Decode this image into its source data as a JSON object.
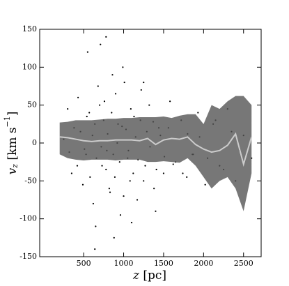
{
  "chart_data": {
    "type": "scatter",
    "xlabel": {
      "symbol": "z",
      "unit": "[pc]"
    },
    "ylabel": {
      "symbol": "v",
      "subscript": "z",
      "unit": "[km s",
      "exponent": "−1",
      "close": "]"
    },
    "xlim": [
      -50,
      2720
    ],
    "ylim": [
      -150,
      150
    ],
    "xticks": [
      500,
      1000,
      1500,
      2000,
      2500
    ],
    "yticks": [
      -150,
      -100,
      -50,
      0,
      50,
      100,
      150
    ],
    "points": {
      "color": "#000000",
      "x": [
        250,
        320,
        380,
        420,
        460,
        510,
        540,
        580,
        610,
        640,
        660,
        700,
        720,
        750,
        780,
        800,
        820,
        850,
        870,
        900,
        920,
        950,
        980,
        1000,
        1030,
        1060,
        1090,
        1120,
        1150,
        1180,
        1210,
        1250,
        1290,
        1330,
        1370,
        1410,
        1460,
        1510,
        1560,
        1620,
        1680,
        1740,
        1800,
        1870,
        1950,
        2050,
        2150,
        2250,
        2350,
        2450,
        300,
        350,
        430,
        490,
        530,
        570,
        620,
        680,
        730,
        760,
        790,
        830,
        860,
        890,
        930,
        960,
        1010,
        1050,
        1080,
        1130,
        1170,
        1220,
        1270,
        1320,
        1380,
        1440,
        1500,
        1580,
        1650,
        1720,
        1790,
        1860,
        1930,
        2020,
        2120,
        2200,
        2300,
        2400,
        2500,
        2600,
        550,
        650,
        780,
        880,
        990,
        1100,
        1250,
        1400,
        640,
        710
      ],
      "y": [
        5,
        -12,
        20,
        -30,
        15,
        -8,
        35,
        -45,
        10,
        25,
        -20,
        50,
        -5,
        30,
        -35,
        12,
        -60,
        40,
        -15,
        65,
        0,
        -25,
        22,
        -70,
        18,
        -10,
        45,
        -40,
        8,
        -22,
        30,
        -50,
        15,
        -5,
        28,
        -35,
        10,
        -18,
        20,
        -28,
        5,
        -40,
        12,
        -15,
        8,
        -20,
        30,
        -35,
        15,
        -10,
        45,
        -40,
        60,
        -55,
        -15,
        40,
        -80,
        75,
        -30,
        55,
        -10,
        -65,
        90,
        -45,
        25,
        -95,
        80,
        -20,
        -50,
        35,
        -75,
        70,
        -30,
        50,
        -60,
        20,
        -40,
        55,
        -25,
        30,
        -45,
        -15,
        40,
        -55,
        25,
        -30,
        45,
        -50,
        10,
        -20,
        120,
        -110,
        140,
        -125,
        100,
        -105,
        80,
        -90,
        -140,
        130
      ]
    },
    "band": {
      "color": "#555555",
      "x": [
        200,
        300,
        400,
        500,
        600,
        700,
        800,
        900,
        1000,
        1100,
        1200,
        1300,
        1400,
        1500,
        1600,
        1700,
        1800,
        1900,
        2000,
        2100,
        2200,
        2300,
        2400,
        2500,
        2600
      ],
      "upper": [
        27,
        28,
        30,
        30,
        30,
        31,
        32,
        32,
        33,
        33,
        34,
        34,
        34,
        35,
        33,
        36,
        38,
        38,
        25,
        50,
        45,
        55,
        62,
        62,
        50
      ],
      "lower": [
        -15,
        -20,
        -22,
        -23,
        -22,
        -22,
        -22,
        -23,
        -22,
        -22,
        -22,
        -25,
        -25,
        -24,
        -25,
        -26,
        -20,
        -30,
        -45,
        -60,
        -50,
        -45,
        -60,
        -90,
        -40
      ],
      "median": [
        8,
        7,
        5,
        3,
        2,
        3,
        3,
        4,
        4,
        4,
        3,
        6,
        -2,
        4,
        6,
        5,
        8,
        -2,
        -8,
        -12,
        -10,
        -3,
        12,
        -28,
        8
      ],
      "line_color": "#cccccc"
    }
  }
}
